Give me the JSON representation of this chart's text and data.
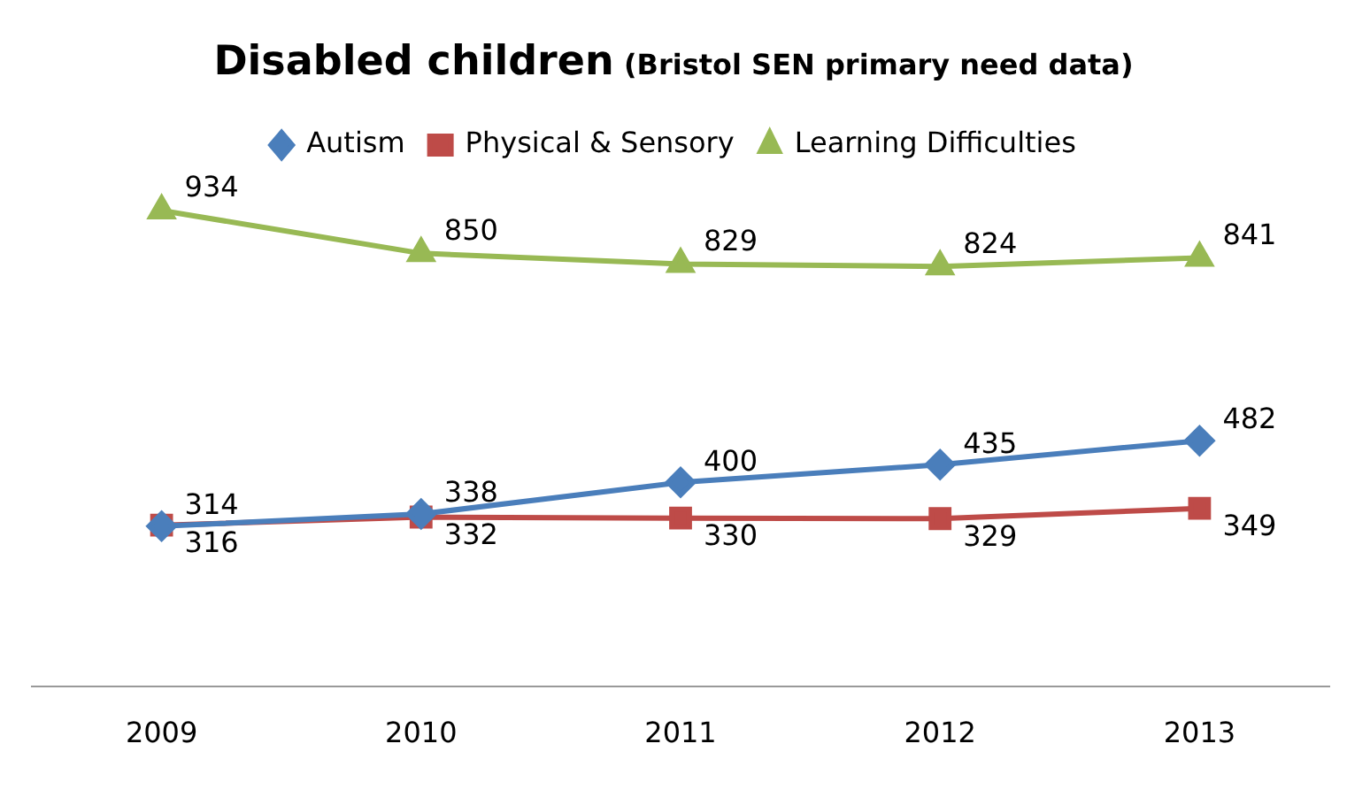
{
  "chart_data": {
    "type": "line",
    "title": "Disabled children",
    "subtitle": "(Bristol SEN primary need data)",
    "categories": [
      "2009",
      "2010",
      "2011",
      "2012",
      "2013"
    ],
    "series": [
      {
        "name": "Autism",
        "color": "#4a7ebb",
        "marker": "diamond",
        "values": [
          314,
          338,
          400,
          435,
          482
        ]
      },
      {
        "name": "Physical & Sensory",
        "color": "#be4b48",
        "marker": "square",
        "values": [
          316,
          332,
          330,
          329,
          349
        ]
      },
      {
        "name": "Learning Difficulties",
        "color": "#98b954",
        "marker": "triangle",
        "values": [
          934,
          850,
          829,
          824,
          841
        ]
      }
    ],
    "data_labels": true,
    "legend": "top",
    "grid": false,
    "line_style": "solid"
  }
}
